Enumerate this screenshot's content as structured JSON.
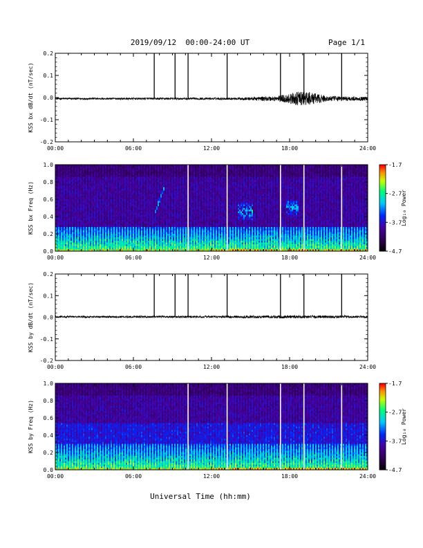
{
  "header": {
    "date_range": "2019/09/12  00:00-24:00 UT",
    "page": "Page 1/1"
  },
  "footer": {
    "xlabel": "Universal Time (hh:mm)"
  },
  "colors": {
    "background": "#ffffff",
    "trace": "#000000",
    "gap_line": "#ffffff"
  },
  "chart_data": [
    {
      "type": "line",
      "title": "",
      "ylabel": "KSS bx dB/dt (nT/sec)",
      "xlabel": "",
      "xlim": [
        0,
        24
      ],
      "ylim": [
        -0.2,
        0.2
      ],
      "x_ticks": [
        "00:00",
        "06:00",
        "12:00",
        "18:00",
        "24:00"
      ],
      "y_ticks": [
        "0.2",
        "0.1",
        "0.0",
        "-0.1",
        "-0.2"
      ],
      "baseline": -0.005,
      "noise_amplitude": 0.004,
      "noise_envelope": [
        [
          0,
          0.004
        ],
        [
          14,
          0.005
        ],
        [
          17,
          0.012
        ],
        [
          19,
          0.035
        ],
        [
          21,
          0.012
        ],
        [
          24,
          0.008
        ]
      ],
      "spikes_hours": [
        7.6,
        9.2,
        10.2,
        13.2,
        17.3,
        19.1,
        22.0
      ],
      "spike_peak": 0.2,
      "grid": false
    },
    {
      "type": "heatmap",
      "title": "",
      "ylabel": "KSS bx Freq (Hz)",
      "xlim": [
        0,
        24
      ],
      "ylim": [
        0,
        1.0
      ],
      "x_ticks": [
        "00:00",
        "06:00",
        "12:00",
        "18:00",
        "24:00"
      ],
      "y_ticks": [
        "1.0",
        "0.8",
        "0.6",
        "0.4",
        "0.2",
        "0.0"
      ],
      "colorbar": {
        "label": "Log₁₀ Power",
        "ticks": [
          "-1.7",
          "-2.7",
          "-3.7",
          "-4.7"
        ],
        "range": [
          -4.7,
          -1.7
        ]
      },
      "gaps_hours": [
        10.2,
        13.2,
        17.3,
        19.1,
        22.0
      ],
      "features": [
        {
          "kind": "low_band",
          "freq_max": 0.28
        },
        {
          "kind": "burst",
          "t_start": 14.0,
          "t_end": 15.2,
          "f_center": 0.46,
          "f_spread": 0.1
        },
        {
          "kind": "burst",
          "t_start": 17.7,
          "t_end": 18.7,
          "f_center": 0.5,
          "f_spread": 0.1
        },
        {
          "kind": "streak",
          "t_start": 7.6,
          "t_end": 8.4,
          "f_start": 0.42,
          "f_end": 0.75
        }
      ]
    },
    {
      "type": "line",
      "title": "",
      "ylabel": "KSS by dB/dt (nT/sec)",
      "xlabel": "",
      "xlim": [
        0,
        24
      ],
      "ylim": [
        -0.2,
        0.2
      ],
      "x_ticks": [
        "00:00",
        "06:00",
        "12:00",
        "18:00",
        "24:00"
      ],
      "y_ticks": [
        "0.2",
        "0.1",
        "0.0",
        "-0.1",
        "-0.2"
      ],
      "baseline": 0.002,
      "noise_amplitude": 0.004,
      "noise_envelope": [
        [
          0,
          0.004
        ],
        [
          12,
          0.005
        ],
        [
          18,
          0.007
        ],
        [
          24,
          0.005
        ]
      ],
      "spikes_hours": [
        7.6,
        9.2,
        10.2,
        13.2,
        17.3,
        19.1,
        22.0
      ],
      "spike_peak": 0.2,
      "grid": false
    },
    {
      "type": "heatmap",
      "title": "",
      "ylabel": "KSS by Freq (Hz)",
      "xlim": [
        0,
        24
      ],
      "ylim": [
        0,
        1.0
      ],
      "x_ticks": [
        "00:00",
        "06:00",
        "12:00",
        "18:00",
        "24:00"
      ],
      "y_ticks": [
        "1.0",
        "0.8",
        "0.6",
        "0.4",
        "0.2",
        "0.0"
      ],
      "colorbar": {
        "label": "Log₁₀ Power",
        "ticks": [
          "-1.7",
          "-2.7",
          "-3.7",
          "-4.7"
        ],
        "range": [
          -4.7,
          -1.7
        ]
      },
      "gaps_hours": [
        10.2,
        13.2,
        17.3,
        19.1,
        22.0
      ],
      "features": [
        {
          "kind": "low_band",
          "freq_max": 0.3
        },
        {
          "kind": "mid_band",
          "freq_min": 0.3,
          "freq_max": 0.55
        }
      ]
    }
  ]
}
